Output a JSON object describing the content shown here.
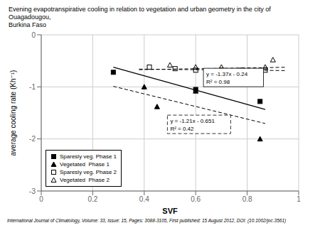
{
  "chart_data": {
    "type": "scatter",
    "title": "Evening evapotranspirative cooling in relation to vegetation and urban geometry in the city of Ouagadougou,",
    "subtitle": "Burkina Faso",
    "footer": "International Journal of Climatology, Volume: 33, Issue: 15, Pages: 3088-3105, First published: 15 August 2012, DOI: (10.1002/joc.3561)",
    "x_label": "SVF",
    "y_label": "average cooling rate (Kh⁻¹)",
    "xlim": [
      0,
      1
    ],
    "ylim": [
      -3,
      0
    ],
    "xticks": [
      0,
      0.2,
      0.4,
      0.6,
      0.8,
      1
    ],
    "yticks": [
      0,
      -1,
      -2,
      -3
    ],
    "grid": true,
    "legend": "lower left",
    "series": [
      {
        "name": "Sparesly veg. Phase 1",
        "type": "scatter",
        "marker": "square",
        "color": "#000000",
        "x": [
          0.28,
          0.6,
          0.85
        ],
        "values": [
          -0.72,
          -1.05,
          -1.28
        ]
      },
      {
        "name": "Vegetated  Phase 1",
        "type": "scatter",
        "marker": "triangle",
        "color": "#000000",
        "x": [
          0.4,
          0.45,
          0.6,
          0.85
        ],
        "values": [
          -1.0,
          -1.38,
          -1.08,
          -2.0
        ]
      },
      {
        "name": "Sparesly veg. Phase 2",
        "type": "scatter",
        "marker": "open_square",
        "color": "#000000",
        "x": [
          0.42,
          0.52,
          0.6,
          0.7,
          0.78,
          0.87
        ],
        "values": [
          -0.62,
          -0.65,
          -0.68,
          -0.68,
          -0.68,
          -0.68
        ]
      },
      {
        "name": "Vegetated  Phase 2",
        "type": "scatter",
        "marker": "open_triangle",
        "color": "#000000",
        "x": [
          0.5,
          0.6,
          0.7,
          0.87,
          0.9
        ],
        "values": [
          -0.58,
          -0.62,
          -0.62,
          -0.62,
          -0.48
        ]
      },
      {
        "type": "line",
        "line_style": "solid",
        "color": "#000000",
        "x": [
          0.28,
          0.87
        ],
        "values": [
          -0.6236,
          -1.4319
        ]
      },
      {
        "type": "line",
        "line_style": "dashed",
        "color": "#000000",
        "x": [
          0.28,
          0.87
        ],
        "values": [
          -0.9898,
          -1.7037
        ]
      },
      {
        "type": "line",
        "line_style": "dashed",
        "color": "#000000",
        "x": [
          0.38,
          0.95
        ],
        "values": [
          -0.659,
          -0.6875
        ]
      },
      {
        "type": "line",
        "line_style": "dashed",
        "color": "#000000",
        "x": [
          0.38,
          0.95
        ],
        "values": [
          -0.6696,
          -0.624
        ]
      }
    ],
    "annotations": [
      {
        "text": [
          "y = -1.37x - 0.24",
          "R² = 0.98"
        ],
        "x": 0.63,
        "y": -0.82,
        "line_style": "solid"
      },
      {
        "text": [
          "y = -1.21x - 0.651",
          "R² = 0.42"
        ],
        "x": 0.49,
        "y": -1.72,
        "line_style": "dashed"
      }
    ]
  }
}
